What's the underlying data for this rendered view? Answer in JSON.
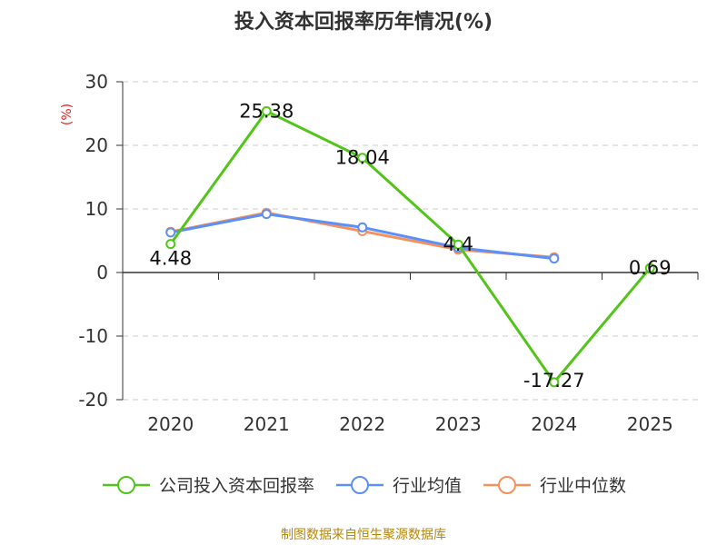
{
  "title": "投入资本回报率历年情况(%)",
  "source_note": "制图数据来自恒生聚源数据库",
  "chart_data": {
    "type": "line",
    "title": "投入资本回报率历年情况(%)",
    "xlabel": "",
    "ylabel": "(%)",
    "categories": [
      "2020",
      "2021",
      "2022",
      "2023",
      "2024",
      "2025"
    ],
    "ylim": [
      -20,
      30
    ],
    "yticks": [
      30,
      20,
      10,
      0,
      -10,
      -20
    ],
    "ytick_labels": [
      "30",
      "20",
      "10",
      "0",
      "-10",
      "-20"
    ],
    "grid": true,
    "legend_position": "bottom",
    "series": [
      {
        "name": "公司投入资本回报率",
        "color": "#52c41a",
        "values": [
          4.48,
          25.38,
          18.04,
          4.4,
          -17.27,
          0.69
        ],
        "labels": [
          "4.48",
          "25.38",
          "18.04",
          "4.4",
          "-17.27",
          "0.69"
        ]
      },
      {
        "name": "行业均值",
        "color": "#5b8ff9",
        "values": [
          6.3,
          9.2,
          7.1,
          3.9,
          2.2,
          null
        ]
      },
      {
        "name": "行业中位数",
        "color": "#f4915c",
        "values": [
          6.4,
          9.4,
          6.5,
          3.6,
          2.4,
          null
        ]
      }
    ]
  }
}
